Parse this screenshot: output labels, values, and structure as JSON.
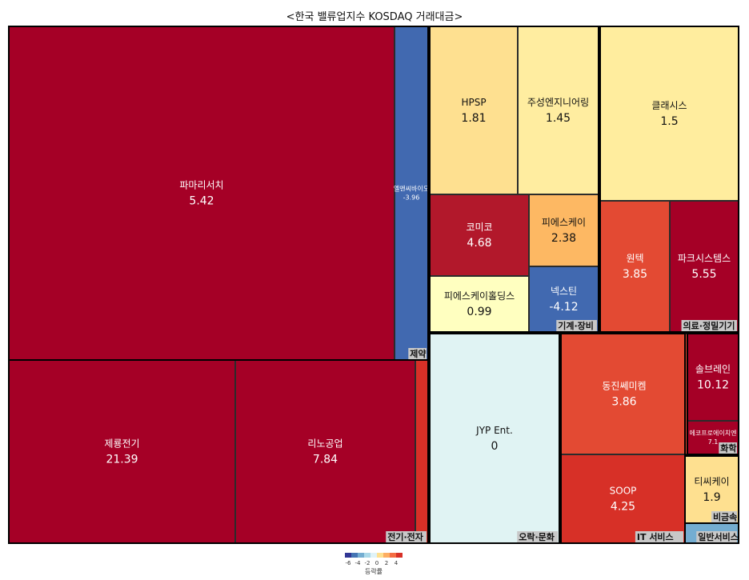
{
  "chart_data": {
    "type": "treemap",
    "title": "<한국 밸류업지수 KOSDAQ 거래대금>",
    "legend": {
      "title": "등락률",
      "ticks": [
        "-6",
        "-4",
        "-2",
        "0",
        "2",
        "4"
      ],
      "colors": [
        "#313695",
        "#4575b4",
        "#74add1",
        "#abd9e9",
        "#e0f3f8",
        "#fee090",
        "#fdae61",
        "#f46d43",
        "#d73027"
      ]
    },
    "sectors": [
      {
        "name": "제약",
        "items": [
          {
            "name": "파마리서치",
            "value": "5.42",
            "color": "#a50026"
          },
          {
            "name": "엘앤씨바이오",
            "value": "-3.96",
            "color": "#4169b0"
          }
        ]
      },
      {
        "name": "전기·전자",
        "items": [
          {
            "name": "제룡전기",
            "value": "21.39",
            "color": "#a50026"
          },
          {
            "name": "리노공업",
            "value": "7.84",
            "color": "#a50026"
          },
          {
            "name": "",
            "value": "",
            "color": "#d73027"
          }
        ]
      },
      {
        "name": "기계·장비",
        "items": [
          {
            "name": "HPSP",
            "value": "1.81",
            "color": "#fee090"
          },
          {
            "name": "주성엔지니어링",
            "value": "1.45",
            "color": "#ffeda0"
          },
          {
            "name": "코미코",
            "value": "4.68",
            "color": "#b2182b"
          },
          {
            "name": "피에스케이",
            "value": "2.38",
            "color": "#fdb863"
          },
          {
            "name": "피에스케이홀딩스",
            "value": "0.99",
            "color": "#ffffc0"
          },
          {
            "name": "넥스틴",
            "value": "-4.12",
            "color": "#4169b0"
          }
        ]
      },
      {
        "name": "의료·정밀기기",
        "items": [
          {
            "name": "클래시스",
            "value": "1.5",
            "color": "#ffed9e"
          },
          {
            "name": "원텍",
            "value": "3.85",
            "color": "#e34a33"
          },
          {
            "name": "파크시스템스",
            "value": "5.55",
            "color": "#a50026"
          }
        ]
      },
      {
        "name": "오락·문화",
        "items": [
          {
            "name": "JYP Ent.",
            "value": "0",
            "color": "#e0f3f3"
          }
        ]
      },
      {
        "name": "IT 서비스",
        "items": [
          {
            "name": "동진쎄미켐",
            "value": "3.86",
            "color": "#e34a33"
          },
          {
            "name": "SOOP",
            "value": "4.25",
            "color": "#d73027"
          }
        ]
      },
      {
        "name": "화학",
        "items": [
          {
            "name": "솔브레인",
            "value": "10.12",
            "color": "#a50026"
          },
          {
            "name": "에코프로에이치엔",
            "value": "7.1",
            "color": "#a50026"
          }
        ]
      },
      {
        "name": "비금속",
        "items": [
          {
            "name": "티씨케이",
            "value": "1.9",
            "color": "#fee090"
          }
        ]
      },
      {
        "name": "일반서비스",
        "items": [
          {
            "name": "",
            "value": "",
            "color": "#74add1"
          }
        ]
      }
    ]
  }
}
